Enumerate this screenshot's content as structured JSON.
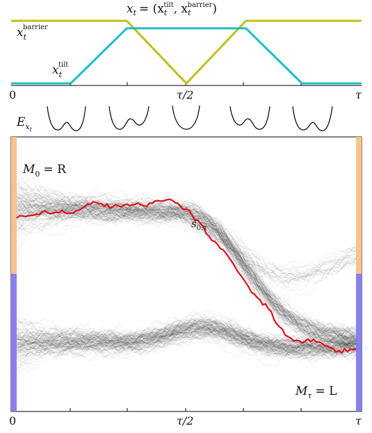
{
  "protocol": {
    "title": "x",
    "title_sub": "t",
    "title_eq": "= (x",
    "title_sub2": "t",
    "title_sup2": "tilt",
    "title_comma": ", x",
    "title_sub3": "t",
    "title_sup3": "barrier",
    "title_close": ")",
    "barrier_label": {
      "base": "x",
      "sub": "t",
      "sup": "barrier"
    },
    "tilt_label": {
      "base": "x",
      "sub": "t",
      "sup": "tilt"
    },
    "colors": {
      "barrier": "#c2bd16",
      "tilt": "#1bbfc2"
    },
    "barrier_line": [
      [
        0,
        1
      ],
      [
        0.33,
        1
      ],
      [
        0.5,
        0
      ],
      [
        0.67,
        1
      ],
      [
        1,
        1
      ]
    ],
    "tilt_line": [
      [
        0,
        0
      ],
      [
        0.17,
        0
      ],
      [
        0.33,
        0.88
      ],
      [
        0.67,
        0.88
      ],
      [
        0.83,
        0
      ],
      [
        1,
        0
      ]
    ]
  },
  "axis_top": {
    "tick0": "0",
    "tick_mid": "τ/2",
    "tick_end": "τ"
  },
  "energy": {
    "label_base": "E",
    "label_sub": "x",
    "label_subsub": "t"
  },
  "trajectories": {
    "state_top_label": {
      "base": "M",
      "sub": "0",
      "rest": "= R"
    },
    "state_bottom_label": {
      "base": "M",
      "sub": "τ",
      "rest": "= L"
    },
    "path_label": {
      "base": "s",
      "sub": "0:τ"
    },
    "colors": {
      "R": "#f7c48c",
      "L": "#8880f0",
      "highlight": "#e0101a"
    }
  },
  "axis_bottom": {
    "tick0": "0",
    "tick_mid": "τ/2",
    "tick_end": "τ"
  }
}
